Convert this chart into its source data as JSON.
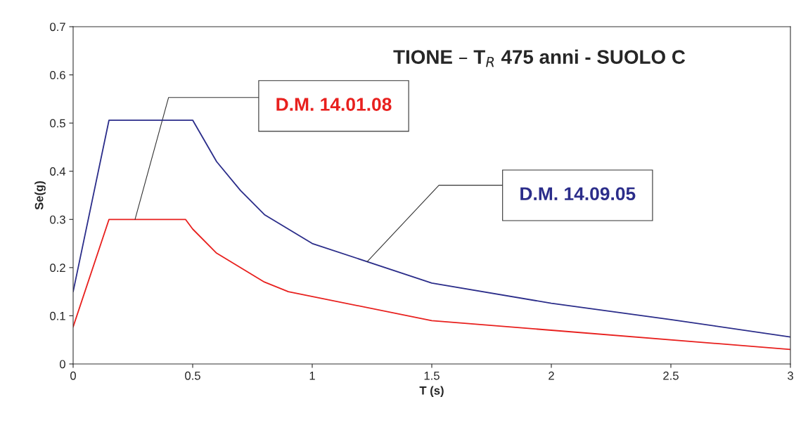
{
  "chart_data": {
    "type": "line",
    "title": "TIONE – T$_{R}$ 475 anni - SUOLO C",
    "xlabel": "T (s)",
    "ylabel": "Se(g)",
    "series": [
      {
        "name": "D.M. 14.01.08",
        "color": "#e8201e",
        "x": [
          0,
          0.15,
          0.47,
          0.5,
          0.6,
          0.8,
          0.9,
          1.5,
          2.0,
          3.0
        ],
        "values": [
          0.077,
          0.3,
          0.3,
          0.28,
          0.23,
          0.17,
          0.15,
          0.09,
          0.07,
          0.03
        ]
      },
      {
        "name": "D.M. 14.09.05",
        "color": "#2b2d8a",
        "x": [
          0,
          0.15,
          0.5,
          0.6,
          0.7,
          0.8,
          1.0,
          1.5,
          2.0,
          2.5,
          3.0
        ],
        "values": [
          0.15,
          0.506,
          0.506,
          0.42,
          0.36,
          0.31,
          0.25,
          0.168,
          0.126,
          0.092,
          0.056
        ]
      }
    ],
    "xlim": [
      0,
      3
    ],
    "ylim": [
      0,
      0.7
    ],
    "xticks": [
      0,
      0.5,
      1,
      1.5,
      2,
      2.5,
      3
    ],
    "yticks": [
      0,
      0.1,
      0.2,
      0.3,
      0.4,
      0.5,
      0.6,
      0.7
    ],
    "grid": false,
    "legend": false,
    "marker": "none",
    "line_style": "solid"
  }
}
